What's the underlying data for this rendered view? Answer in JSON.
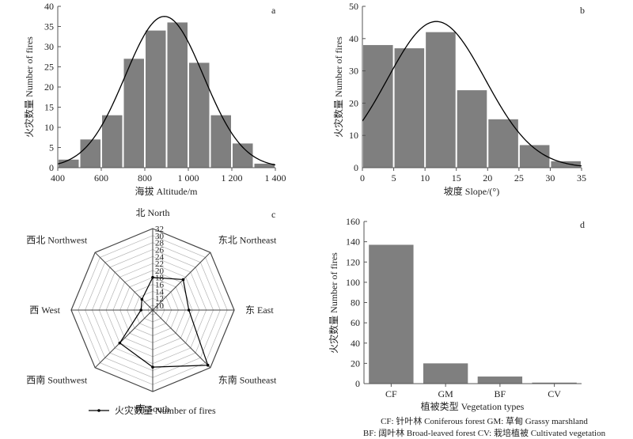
{
  "chart_data": [
    {
      "id": "a",
      "type": "bar",
      "panel_label": "a",
      "title": "",
      "xlabel": "海拔 Altitude/m",
      "ylabel": "火灾数量 Number of fires",
      "xlim": [
        400,
        1400
      ],
      "ylim": [
        0,
        40
      ],
      "xticks": [
        "400",
        "600",
        "800",
        "1 000",
        "1 200",
        "1 400"
      ],
      "yticks": [
        "0",
        "5",
        "10",
        "15",
        "20",
        "25",
        "30",
        "35",
        "40"
      ],
      "bins": [
        {
          "x0": 400,
          "x1": 500,
          "value": 2
        },
        {
          "x0": 500,
          "x1": 600,
          "value": 7
        },
        {
          "x0": 600,
          "x1": 700,
          "value": 13
        },
        {
          "x0": 700,
          "x1": 800,
          "value": 27
        },
        {
          "x0": 800,
          "x1": 900,
          "value": 34
        },
        {
          "x0": 900,
          "x1": 1000,
          "value": 36
        },
        {
          "x0": 1000,
          "x1": 1100,
          "value": 26
        },
        {
          "x0": 1100,
          "x1": 1200,
          "value": 13
        },
        {
          "x0": 1200,
          "x1": 1300,
          "value": 6
        },
        {
          "x0": 1300,
          "x1": 1400,
          "value": 1
        }
      ],
      "normal_curve": {
        "mean": 890,
        "sd": 180,
        "peak": 37.5
      }
    },
    {
      "id": "b",
      "type": "bar",
      "panel_label": "b",
      "title": "",
      "xlabel": "坡度 Slope/(°)",
      "ylabel": "火灾数量 Number of fires",
      "xlim": [
        0,
        35
      ],
      "ylim": [
        0,
        50
      ],
      "xticks": [
        "0",
        "5",
        "10",
        "15",
        "20",
        "25",
        "30",
        "35"
      ],
      "yticks": [
        "0",
        "10",
        "20",
        "30",
        "40",
        "50"
      ],
      "bins": [
        {
          "x0": 0,
          "x1": 5,
          "value": 38
        },
        {
          "x0": 5,
          "x1": 10,
          "value": 37
        },
        {
          "x0": 10,
          "x1": 15,
          "value": 42
        },
        {
          "x0": 15,
          "x1": 20,
          "value": 24
        },
        {
          "x0": 20,
          "x1": 25,
          "value": 15
        },
        {
          "x0": 25,
          "x1": 30,
          "value": 7
        },
        {
          "x0": 30,
          "x1": 35,
          "value": 2
        }
      ],
      "normal_curve": {
        "mean": 11.8,
        "sd": 7.8,
        "peak": 45.3
      }
    },
    {
      "id": "c",
      "type": "radar",
      "panel_label": "c",
      "title": "",
      "directions": [
        "北 North",
        "东北 Northeast",
        "东 East",
        "东南 Southeast",
        "南 South",
        "西南 Southwest",
        "西 West",
        "西北 Northwest"
      ],
      "rlim": [
        10,
        32
      ],
      "rticks": [
        "10",
        "12",
        "14",
        "16",
        "18",
        "20",
        "22",
        "24",
        "26",
        "28",
        "30",
        "32"
      ],
      "series": [
        {
          "name": "火灾数量 Number of fires",
          "values": [
            18,
            21,
            19,
            31,
            25,
            22,
            12,
            13
          ]
        }
      ]
    },
    {
      "id": "d",
      "type": "bar",
      "panel_label": "d",
      "title": "",
      "xlabel": "植被类型 Vegetation types",
      "ylabel": "火灾数量 Number of fires",
      "categories": [
        "CF",
        "GM",
        "BF",
        "CV"
      ],
      "values": [
        137,
        20,
        7,
        1
      ],
      "ylim": [
        0,
        160
      ],
      "yticks": [
        "0",
        "20",
        "40",
        "60",
        "80",
        "100",
        "120",
        "140",
        "160"
      ],
      "notes": [
        "CF: 针叶林 Coniferous forest GM: 草甸 Grassy marshland",
        "BF: 阔叶林 Broad-leaved forest CV: 栽培植被 Cultivated vegetation"
      ]
    }
  ],
  "colors": {
    "bar": "#7f7f7f",
    "curve": "#000000",
    "axis": "#555555"
  }
}
